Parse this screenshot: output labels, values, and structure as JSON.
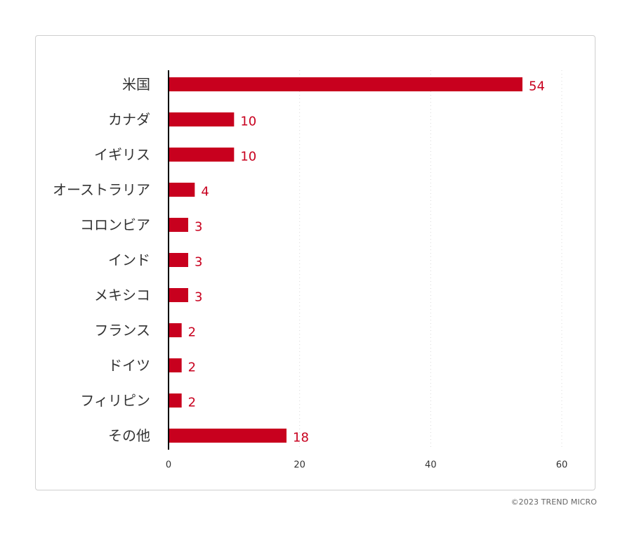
{
  "chart_data": {
    "type": "bar",
    "orientation": "horizontal",
    "title": "",
    "xlabel": "",
    "ylabel": "",
    "categories": [
      "米国",
      "カナダ",
      "イギリス",
      "オーストラリア",
      "コロンビア",
      "インド",
      "メキシコ",
      "フランス",
      "ドイツ",
      "フィリピン",
      "その他"
    ],
    "values": [
      54,
      10,
      10,
      4,
      3,
      3,
      3,
      2,
      2,
      2,
      18
    ],
    "xlim": [
      0,
      60
    ],
    "xticks": [
      0,
      20,
      40,
      60
    ],
    "grid": "vertical dotted",
    "legend": "none",
    "bar_color": "#c8001e",
    "value_label_color": "#c8001e",
    "axis_color": "#000000",
    "grid_color": "#d8d8d8"
  },
  "footer": {
    "copyright": "©2023 TREND MICRO"
  }
}
